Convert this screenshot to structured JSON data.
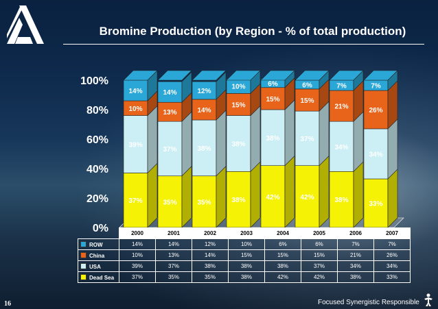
{
  "title": "Bromine Production (by Region - % of total production)",
  "page_number": "16",
  "footer": "Focused  Synergistic  Responsible",
  "colors": {
    "ROW": "#2aa7d6",
    "China": "#e8641a",
    "USA": "#cceff5",
    "Dead Sea": "#f6f205"
  },
  "chart_data": {
    "type": "bar",
    "stacked": true,
    "style": "3d-100%-stacked-column",
    "categories": [
      "2000",
      "2001",
      "2002",
      "2003",
      "2004",
      "2005",
      "2006",
      "2007"
    ],
    "series": [
      {
        "name": "Dead Sea",
        "values": [
          37,
          35,
          35,
          38,
          42,
          42,
          38,
          33
        ],
        "labels": [
          "37%",
          "35%",
          "35%",
          "38%",
          "42%",
          "42%",
          "38%",
          "33%"
        ]
      },
      {
        "name": "USA",
        "values": [
          39,
          37,
          38,
          38,
          38,
          37,
          34,
          34
        ],
        "labels": [
          "39%",
          "37%",
          "38%",
          "38%",
          "38%",
          "37%",
          "34%",
          "34%"
        ]
      },
      {
        "name": "China",
        "values": [
          10,
          13,
          14,
          15,
          15,
          15,
          21,
          26
        ],
        "labels": [
          "10%",
          "13%",
          "14%",
          "15%",
          "15%",
          "15%",
          "21%",
          "26%"
        ]
      },
      {
        "name": "ROW",
        "values": [
          14,
          14,
          12,
          10,
          6,
          6,
          7,
          7
        ],
        "labels": [
          "14%",
          "14%",
          "12%",
          "10%",
          "6%",
          "6%",
          "7%",
          "7%"
        ]
      }
    ],
    "yticks": [
      "0%",
      "20%",
      "40%",
      "60%",
      "80%",
      "100%"
    ],
    "ylim": [
      0,
      100
    ],
    "legend_placement": "data-table",
    "table_rows": [
      "ROW",
      "China",
      "USA",
      "Dead Sea"
    ]
  }
}
